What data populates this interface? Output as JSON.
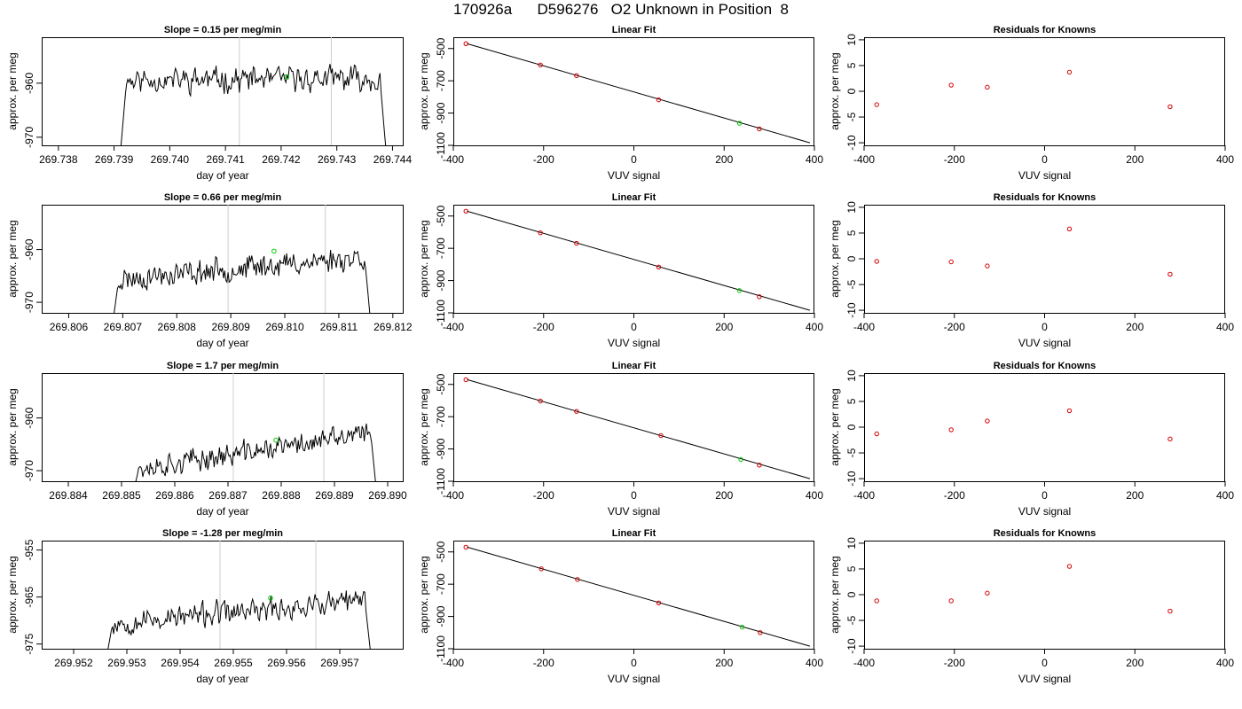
{
  "page_title": "170926a      D596276   O2 Unknown in Position  8",
  "colors": {
    "trace": "#000000",
    "known_points": "#d40000",
    "unknown_point": "#00cc00",
    "marker_lines": "#cccccc",
    "fit_line": "#000000"
  },
  "chart_data": [
    {
      "type": "line",
      "row": 0,
      "panel": "trace",
      "title": "Slope =  0.15  per meg/min",
      "xlabel": "day of year",
      "ylabel": "approx. per meg",
      "xlim": [
        269.7377,
        269.7442
      ],
      "ylim": [
        -971.5,
        -951.5
      ],
      "xticks": [
        269.738,
        269.739,
        269.74,
        269.741,
        269.742,
        269.743,
        269.744
      ],
      "xtick_labels": [
        "269.738",
        "269.739",
        "269.740",
        "269.741",
        "269.742",
        "269.743",
        "269.744"
      ],
      "yticks": [
        -960,
        -970
      ],
      "ytick_labels": [
        "-960",
        "-970"
      ],
      "markers": [
        269.74125,
        269.7429
      ],
      "unknown_point": {
        "x": 269.7421,
        "y": -958.8
      },
      "trace": {
        "start": 269.7391,
        "end": 269.7439,
        "base": -959.3,
        "amp": 1.8,
        "trend": 0.3,
        "seed": 11
      }
    },
    {
      "type": "scatter",
      "row": 0,
      "panel": "fit",
      "title": "Linear Fit",
      "xlabel": "VUV signal",
      "ylabel": "approx. per meg",
      "xlim": [
        -400,
        400
      ],
      "ylim": [
        -1100,
        -430
      ],
      "xticks": [
        -400,
        -200,
        0,
        200,
        400
      ],
      "xtick_labels": [
        "-400",
        "-200",
        "0",
        "200",
        "400"
      ],
      "yticks": [
        -500,
        -700,
        -900,
        -1100
      ],
      "ytick_labels": [
        "-500",
        "-700",
        "-900",
        "-1100"
      ],
      "line": {
        "x": [
          -370,
          390
        ],
        "y": [
          -470,
          -1084
        ]
      },
      "knowns": [
        {
          "x": -372,
          "y": -470
        },
        {
          "x": -207,
          "y": -602
        },
        {
          "x": -127,
          "y": -668
        },
        {
          "x": 55,
          "y": -818
        },
        {
          "x": 278,
          "y": -998
        }
      ],
      "unknown_point": {
        "x": 234,
        "y": -963
      }
    },
    {
      "type": "scatter",
      "row": 0,
      "panel": "residuals",
      "title": "Residuals for Knowns",
      "xlabel": "VUV signal",
      "ylabel": "approx. per meg",
      "xlim": [
        -400,
        400
      ],
      "ylim": [
        -10.5,
        10.5
      ],
      "xticks": [
        -400,
        -200,
        0,
        200,
        400
      ],
      "xtick_labels": [
        "-400",
        "-200",
        "0",
        "200",
        "400"
      ],
      "yticks": [
        10,
        5,
        0,
        -5,
        -10
      ],
      "ytick_labels": [
        "10",
        "5",
        "0",
        "-5",
        "-10"
      ],
      "points": [
        {
          "x": -372,
          "y": -2.6
        },
        {
          "x": -207,
          "y": 1.2
        },
        {
          "x": -127,
          "y": 0.8
        },
        {
          "x": 55,
          "y": 3.7
        },
        {
          "x": 278,
          "y": -3.0
        }
      ]
    },
    {
      "type": "line",
      "row": 1,
      "panel": "trace",
      "title": "Slope =  0.66  per meg/min",
      "xlabel": "day of year",
      "ylabel": "approx. per meg",
      "xlim": [
        269.8055,
        269.8122
      ],
      "ylim": [
        -972,
        -951.5
      ],
      "xticks": [
        269.806,
        269.807,
        269.808,
        269.809,
        269.81,
        269.811,
        269.812
      ],
      "xtick_labels": [
        "269.806",
        "269.807",
        "269.808",
        "269.809",
        "269.810",
        "269.811",
        "269.812"
      ],
      "yticks": [
        -960,
        -970
      ],
      "ytick_labels": [
        "-960",
        "-970"
      ],
      "markers": [
        269.80895,
        269.81075
      ],
      "unknown_point": {
        "x": 269.8098,
        "y": -960.3
      },
      "trace": {
        "start": 269.8068,
        "end": 269.8116,
        "base": -963.5,
        "amp": 1.8,
        "trend": 4.5,
        "seed": 23
      }
    },
    {
      "type": "scatter",
      "row": 1,
      "panel": "fit",
      "title": "Linear Fit",
      "xlabel": "VUV signal",
      "ylabel": "approx. per meg",
      "xlim": [
        -400,
        400
      ],
      "ylim": [
        -1100,
        -430
      ],
      "xticks": [
        -400,
        -200,
        0,
        200,
        400
      ],
      "xtick_labels": [
        "-400",
        "-200",
        "0",
        "200",
        "400"
      ],
      "yticks": [
        -500,
        -700,
        -900,
        -1100
      ],
      "ytick_labels": [
        "-500",
        "-700",
        "-900",
        "-1100"
      ],
      "line": {
        "x": [
          -370,
          390
        ],
        "y": [
          -470,
          -1084
        ]
      },
      "knowns": [
        {
          "x": -372,
          "y": -470
        },
        {
          "x": -207,
          "y": -604
        },
        {
          "x": -127,
          "y": -669
        },
        {
          "x": 55,
          "y": -816
        },
        {
          "x": 278,
          "y": -1000
        }
      ],
      "unknown_point": {
        "x": 234,
        "y": -962
      }
    },
    {
      "type": "scatter",
      "row": 1,
      "panel": "residuals",
      "title": "Residuals for Knowns",
      "xlabel": "VUV signal",
      "ylabel": "approx. per meg",
      "xlim": [
        -400,
        400
      ],
      "ylim": [
        -10.5,
        10.5
      ],
      "xticks": [
        -400,
        -200,
        0,
        200,
        400
      ],
      "xtick_labels": [
        "-400",
        "-200",
        "0",
        "200",
        "400"
      ],
      "yticks": [
        10,
        5,
        0,
        -5,
        -10
      ],
      "ytick_labels": [
        "10",
        "5",
        "0",
        "-5",
        "-10"
      ],
      "points": [
        {
          "x": -372,
          "y": -0.5
        },
        {
          "x": -207,
          "y": -0.6
        },
        {
          "x": -127,
          "y": -1.4
        },
        {
          "x": 55,
          "y": 5.8
        },
        {
          "x": 278,
          "y": -3.0
        }
      ]
    },
    {
      "type": "line",
      "row": 2,
      "panel": "trace",
      "title": "Slope =  1.7  per meg/min",
      "xlabel": "day of year",
      "ylabel": "approx. per meg",
      "xlim": [
        269.8835,
        269.8903
      ],
      "ylim": [
        -972,
        -951.5
      ],
      "xticks": [
        269.884,
        269.885,
        269.886,
        269.887,
        269.888,
        269.889,
        269.89
      ],
      "xtick_labels": [
        "269.884",
        "269.885",
        "269.886",
        "269.887",
        "269.888",
        "269.889",
        "269.890"
      ],
      "yticks": [
        -960,
        -970
      ],
      "ytick_labels": [
        "-960",
        "-970"
      ],
      "markers": [
        269.8871,
        269.8888
      ],
      "unknown_point": {
        "x": 269.8879,
        "y": -964.2
      },
      "trace": {
        "start": 269.8852,
        "end": 269.8898,
        "base": -966.3,
        "amp": 1.7,
        "trend": 7.0,
        "seed": 37
      }
    },
    {
      "type": "scatter",
      "row": 2,
      "panel": "fit",
      "title": "Linear Fit",
      "xlabel": "VUV signal",
      "ylabel": "approx. per meg",
      "xlim": [
        -400,
        400
      ],
      "ylim": [
        -1100,
        -430
      ],
      "xticks": [
        -400,
        -200,
        0,
        200,
        400
      ],
      "xtick_labels": [
        "-400",
        "-200",
        "0",
        "200",
        "400"
      ],
      "yticks": [
        -500,
        -700,
        -900,
        -1100
      ],
      "ytick_labels": [
        "-500",
        "-700",
        "-900",
        "-1100"
      ],
      "line": {
        "x": [
          -370,
          390
        ],
        "y": [
          -470,
          -1084
        ]
      },
      "knowns": [
        {
          "x": -372,
          "y": -471
        },
        {
          "x": -207,
          "y": -603
        },
        {
          "x": -127,
          "y": -667
        },
        {
          "x": 60,
          "y": -817
        },
        {
          "x": 278,
          "y": -1000
        }
      ],
      "unknown_point": {
        "x": 237,
        "y": -965
      }
    },
    {
      "type": "scatter",
      "row": 2,
      "panel": "residuals",
      "title": "Residuals for Knowns",
      "xlabel": "VUV signal",
      "ylabel": "approx. per meg",
      "xlim": [
        -400,
        400
      ],
      "ylim": [
        -10.5,
        10.5
      ],
      "xticks": [
        -400,
        -200,
        0,
        200,
        400
      ],
      "xtick_labels": [
        "-400",
        "-200",
        "0",
        "200",
        "400"
      ],
      "yticks": [
        10,
        5,
        0,
        -5,
        -10
      ],
      "ytick_labels": [
        "10",
        "5",
        "0",
        "-5",
        "-10"
      ],
      "points": [
        {
          "x": -372,
          "y": -1.3
        },
        {
          "x": -207,
          "y": -0.5
        },
        {
          "x": -127,
          "y": 1.2
        },
        {
          "x": 55,
          "y": 3.2
        },
        {
          "x": 278,
          "y": -2.3
        }
      ]
    },
    {
      "type": "line",
      "row": 3,
      "panel": "trace",
      "title": "Slope =  -1.28  per meg/min",
      "xlabel": "day of year",
      "ylabel": "approx. per meg",
      "xlim": [
        269.9514,
        269.9582
      ],
      "ylim": [
        -976,
        -953
      ],
      "xticks": [
        269.952,
        269.953,
        269.954,
        269.955,
        269.956,
        269.957
      ],
      "xtick_labels": [
        "269.952",
        "269.953",
        "269.954",
        "269.955",
        "269.956",
        "269.957"
      ],
      "yticks": [
        -955,
        -965,
        -975
      ],
      "ytick_labels": [
        "-955",
        "-965",
        "-975"
      ],
      "markers": [
        269.95475,
        269.95655
      ],
      "unknown_point": {
        "x": 269.9557,
        "y": -965.2
      },
      "trace": {
        "start": 269.9526,
        "end": 269.9576,
        "base": -968.2,
        "amp": 2.0,
        "trend": 5.0,
        "seed": 53
      }
    },
    {
      "type": "scatter",
      "row": 3,
      "panel": "fit",
      "title": "Linear Fit",
      "xlabel": "VUV signal",
      "ylabel": "approx. per meg",
      "xlim": [
        -400,
        400
      ],
      "ylim": [
        -1100,
        -430
      ],
      "xticks": [
        -400,
        -200,
        0,
        200,
        400
      ],
      "xtick_labels": [
        "-400",
        "-200",
        "0",
        "200",
        "400"
      ],
      "yticks": [
        -500,
        -700,
        -900,
        -1100
      ],
      "ytick_labels": [
        "-500",
        "-700",
        "-900",
        "-1100"
      ],
      "line": {
        "x": [
          -370,
          390
        ],
        "y": [
          -470,
          -1084
        ]
      },
      "knowns": [
        {
          "x": -372,
          "y": -471
        },
        {
          "x": -205,
          "y": -605
        },
        {
          "x": -125,
          "y": -671
        },
        {
          "x": 55,
          "y": -816
        },
        {
          "x": 280,
          "y": -1000
        }
      ],
      "unknown_point": {
        "x": 240,
        "y": -966
      }
    },
    {
      "type": "scatter",
      "row": 3,
      "panel": "residuals",
      "title": "Residuals for Knowns",
      "xlabel": "VUV signal",
      "ylabel": "approx. per meg",
      "xlim": [
        -400,
        400
      ],
      "ylim": [
        -10.5,
        10.5
      ],
      "xticks": [
        -400,
        -200,
        0,
        200,
        400
      ],
      "xtick_labels": [
        "-400",
        "-200",
        "0",
        "200",
        "400"
      ],
      "yticks": [
        10,
        5,
        0,
        -5,
        -10
      ],
      "ytick_labels": [
        "10",
        "5",
        "0",
        "-5",
        "-10"
      ],
      "points": [
        {
          "x": -372,
          "y": -1.2
        },
        {
          "x": -207,
          "y": -1.2
        },
        {
          "x": -127,
          "y": 0.3
        },
        {
          "x": 55,
          "y": 5.5
        },
        {
          "x": 278,
          "y": -3.2
        }
      ]
    }
  ]
}
